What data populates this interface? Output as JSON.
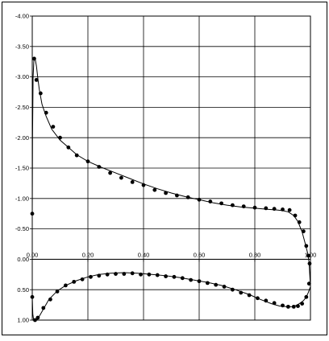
{
  "chart_data": {
    "type": "line",
    "title": "",
    "xlabel": "",
    "ylabel": "",
    "xlim": [
      0.0,
      1.0
    ],
    "ylim": [
      -4.0,
      1.0
    ],
    "y_axis_inverted": true,
    "grid": true,
    "legend": "none",
    "x_ticks": [
      0.0,
      0.2,
      0.4,
      0.6,
      0.8,
      1.0
    ],
    "x_tick_labels": [
      "0.00",
      "0.20",
      "0.40",
      "0.60",
      "0.80",
      "1.00"
    ],
    "y_ticks": [
      -4.0,
      -3.5,
      -3.0,
      -2.5,
      -2.0,
      -1.5,
      -1.0,
      -0.5,
      0.0,
      0.5,
      1.0
    ],
    "y_tick_labels": [
      "-4.00",
      "-3.50",
      "-3.00",
      "-2.50",
      "-2.00",
      "-1.50",
      "-1.00",
      "-0.50",
      "0.00",
      "0.50",
      "1.00"
    ],
    "series": [
      {
        "name": "",
        "color": "#000000",
        "curve": {
          "x": [
            0.0,
            0.001,
            0.003,
            0.006,
            0.01,
            0.015,
            0.02,
            0.025,
            0.035,
            0.05,
            0.07,
            0.1,
            0.13,
            0.16,
            0.2,
            0.25,
            0.3,
            0.35,
            0.4,
            0.45,
            0.5,
            0.55,
            0.6,
            0.65,
            0.7,
            0.75,
            0.8,
            0.85,
            0.88,
            0.9,
            0.92,
            0.94,
            0.955,
            0.97,
            0.98,
            0.99,
            0.995,
            1.0
          ],
          "y": [
            -0.75,
            -2.0,
            -3.0,
            -3.28,
            -3.31,
            -3.18,
            -2.98,
            -2.8,
            -2.55,
            -2.35,
            -2.14,
            -1.96,
            -1.84,
            -1.72,
            -1.61,
            -1.51,
            -1.42,
            -1.33,
            -1.24,
            -1.16,
            -1.09,
            -1.03,
            -0.98,
            -0.93,
            -0.89,
            -0.86,
            -0.84,
            -0.82,
            -0.81,
            -0.8,
            -0.78,
            -0.72,
            -0.62,
            -0.45,
            -0.28,
            -0.1,
            0.05,
            0.45
          ]
        },
        "points": {
          "x": [
            0.0,
            0.007,
            0.015,
            0.03,
            0.05,
            0.075,
            0.1,
            0.13,
            0.16,
            0.2,
            0.24,
            0.28,
            0.32,
            0.36,
            0.4,
            0.44,
            0.48,
            0.52,
            0.56,
            0.6,
            0.64,
            0.68,
            0.72,
            0.76,
            0.8,
            0.84,
            0.87,
            0.9,
            0.925,
            0.945,
            0.96,
            0.975,
            0.985,
            0.993,
            0.997
          ],
          "y": [
            -0.75,
            -3.3,
            -2.95,
            -2.73,
            -2.41,
            -2.18,
            -2.0,
            -1.84,
            -1.71,
            -1.61,
            -1.52,
            -1.42,
            -1.34,
            -1.27,
            -1.22,
            -1.14,
            -1.09,
            -1.05,
            -1.02,
            -0.98,
            -0.95,
            -0.92,
            -0.89,
            -0.87,
            -0.85,
            -0.84,
            -0.83,
            -0.82,
            -0.81,
            -0.72,
            -0.61,
            -0.46,
            -0.22,
            -0.06,
            0.07
          ]
        }
      },
      {
        "name": "",
        "color": "#000000",
        "curve": {
          "x": [
            0.0,
            0.002,
            0.005,
            0.01,
            0.02,
            0.04,
            0.06,
            0.09,
            0.12,
            0.16,
            0.2,
            0.24,
            0.28,
            0.33,
            0.38,
            0.43,
            0.48,
            0.53,
            0.58,
            0.63,
            0.68,
            0.73,
            0.78,
            0.82,
            0.86,
            0.89,
            0.92,
            0.94,
            0.96,
            0.975,
            0.985,
            0.992,
            0.996,
            1.0
          ],
          "y": [
            0.62,
            0.9,
            1.0,
            1.02,
            0.98,
            0.82,
            0.66,
            0.52,
            0.43,
            0.35,
            0.29,
            0.25,
            0.23,
            0.22,
            0.23,
            0.25,
            0.27,
            0.3,
            0.34,
            0.38,
            0.43,
            0.5,
            0.58,
            0.66,
            0.73,
            0.77,
            0.78,
            0.78,
            0.73,
            0.68,
            0.62,
            0.55,
            0.5,
            0.45
          ]
        },
        "points": {
          "x": [
            0.0,
            0.01,
            0.02,
            0.04,
            0.065,
            0.09,
            0.12,
            0.15,
            0.18,
            0.21,
            0.24,
            0.27,
            0.3,
            0.33,
            0.36,
            0.39,
            0.42,
            0.45,
            0.48,
            0.51,
            0.54,
            0.57,
            0.6,
            0.63,
            0.66,
            0.69,
            0.72,
            0.75,
            0.78,
            0.81,
            0.84,
            0.87,
            0.9,
            0.92,
            0.94,
            0.955,
            0.97,
            0.985,
            0.995
          ],
          "y": [
            0.62,
            1.0,
            0.96,
            0.8,
            0.66,
            0.53,
            0.43,
            0.37,
            0.33,
            0.29,
            0.27,
            0.25,
            0.24,
            0.24,
            0.23,
            0.25,
            0.25,
            0.26,
            0.28,
            0.29,
            0.31,
            0.34,
            0.36,
            0.39,
            0.42,
            0.45,
            0.5,
            0.55,
            0.59,
            0.64,
            0.68,
            0.72,
            0.76,
            0.78,
            0.78,
            0.77,
            0.73,
            0.62,
            0.4
          ]
        }
      }
    ]
  }
}
